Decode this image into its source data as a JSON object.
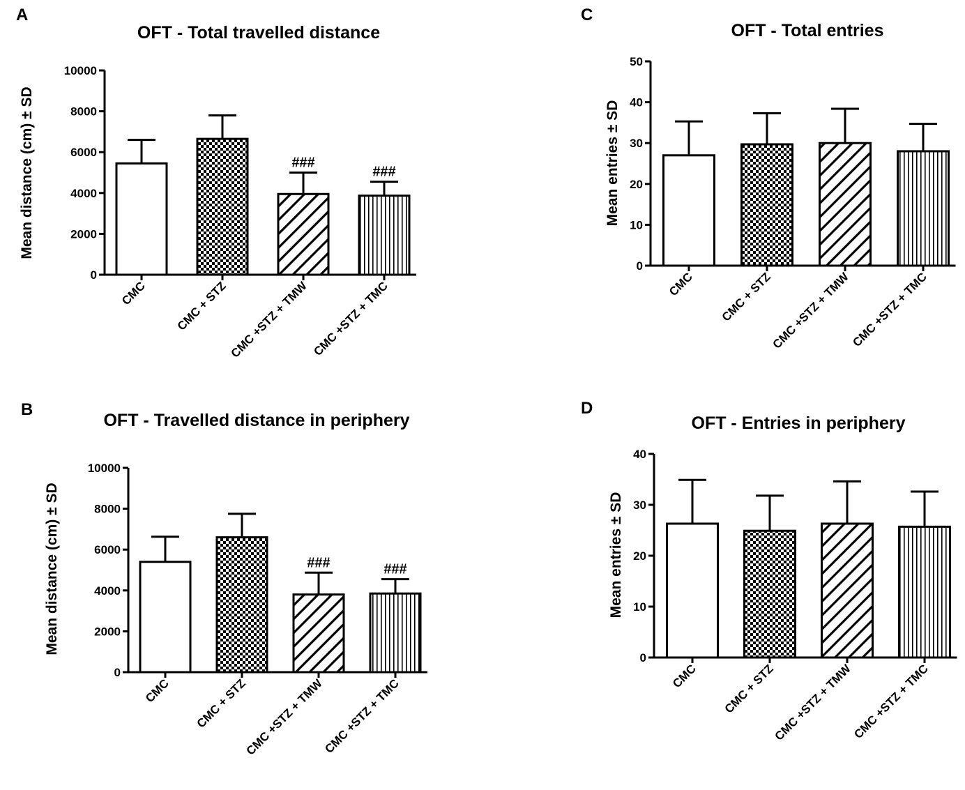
{
  "patterns": [
    "blank",
    "checker",
    "diagonal",
    "vertical"
  ],
  "chart_data": [
    {
      "panel": "A",
      "type": "bar",
      "title": "OFT - Total travelled distance",
      "xlabel": "",
      "ylabel": "Mean distance (cm) ± SD",
      "ylim": [
        0,
        10000
      ],
      "yticks": [
        0,
        2000,
        4000,
        6000,
        8000,
        10000
      ],
      "categories": [
        "CMC",
        "CMC + STZ",
        "CMC +STZ + TMW",
        "CMC +STZ + TMC"
      ],
      "values": [
        5450,
        6650,
        3950,
        3870
      ],
      "errors": [
        1150,
        1150,
        1050,
        680
      ],
      "annotations": [
        "",
        "",
        "###",
        "###"
      ]
    },
    {
      "panel": "B",
      "type": "bar",
      "title": "OFT - Travelled distance in periphery",
      "xlabel": "",
      "ylabel": "Mean distance (cm) ± SD",
      "ylim": [
        0,
        10000
      ],
      "yticks": [
        0,
        2000,
        4000,
        6000,
        8000,
        10000
      ],
      "categories": [
        "CMC",
        "CMC + STZ",
        "CMC +STZ + TMW",
        "CMC +STZ + TMC"
      ],
      "values": [
        5400,
        6600,
        3800,
        3850
      ],
      "errors": [
        1230,
        1150,
        1070,
        700
      ],
      "annotations": [
        "",
        "",
        "###",
        "###"
      ]
    },
    {
      "panel": "C",
      "type": "bar",
      "title": "OFT - Total entries",
      "xlabel": "",
      "ylabel": "Mean entries ± SD",
      "ylim": [
        0,
        50
      ],
      "yticks": [
        0,
        10,
        20,
        30,
        40,
        50
      ],
      "categories": [
        "CMC",
        "CMC + STZ",
        "CMC +STZ + TMW",
        "CMC +STZ + TMC"
      ],
      "values": [
        27,
        29.7,
        30,
        28
      ],
      "errors": [
        8.3,
        7.6,
        8.4,
        6.7
      ],
      "annotations": [
        "",
        "",
        "",
        ""
      ]
    },
    {
      "panel": "D",
      "type": "bar",
      "title": "OFT - Entries in periphery",
      "xlabel": "",
      "ylabel": "Mean entries ± SD",
      "ylim": [
        0,
        40
      ],
      "yticks": [
        0,
        10,
        20,
        30,
        40
      ],
      "categories": [
        "CMC",
        "CMC + STZ",
        "CMC +STZ + TMW",
        "CMC +STZ + TMC"
      ],
      "values": [
        26.3,
        24.9,
        26.3,
        25.7
      ],
      "errors": [
        8.6,
        6.9,
        8.3,
        6.9
      ],
      "annotations": [
        "",
        "",
        "",
        ""
      ]
    }
  ]
}
